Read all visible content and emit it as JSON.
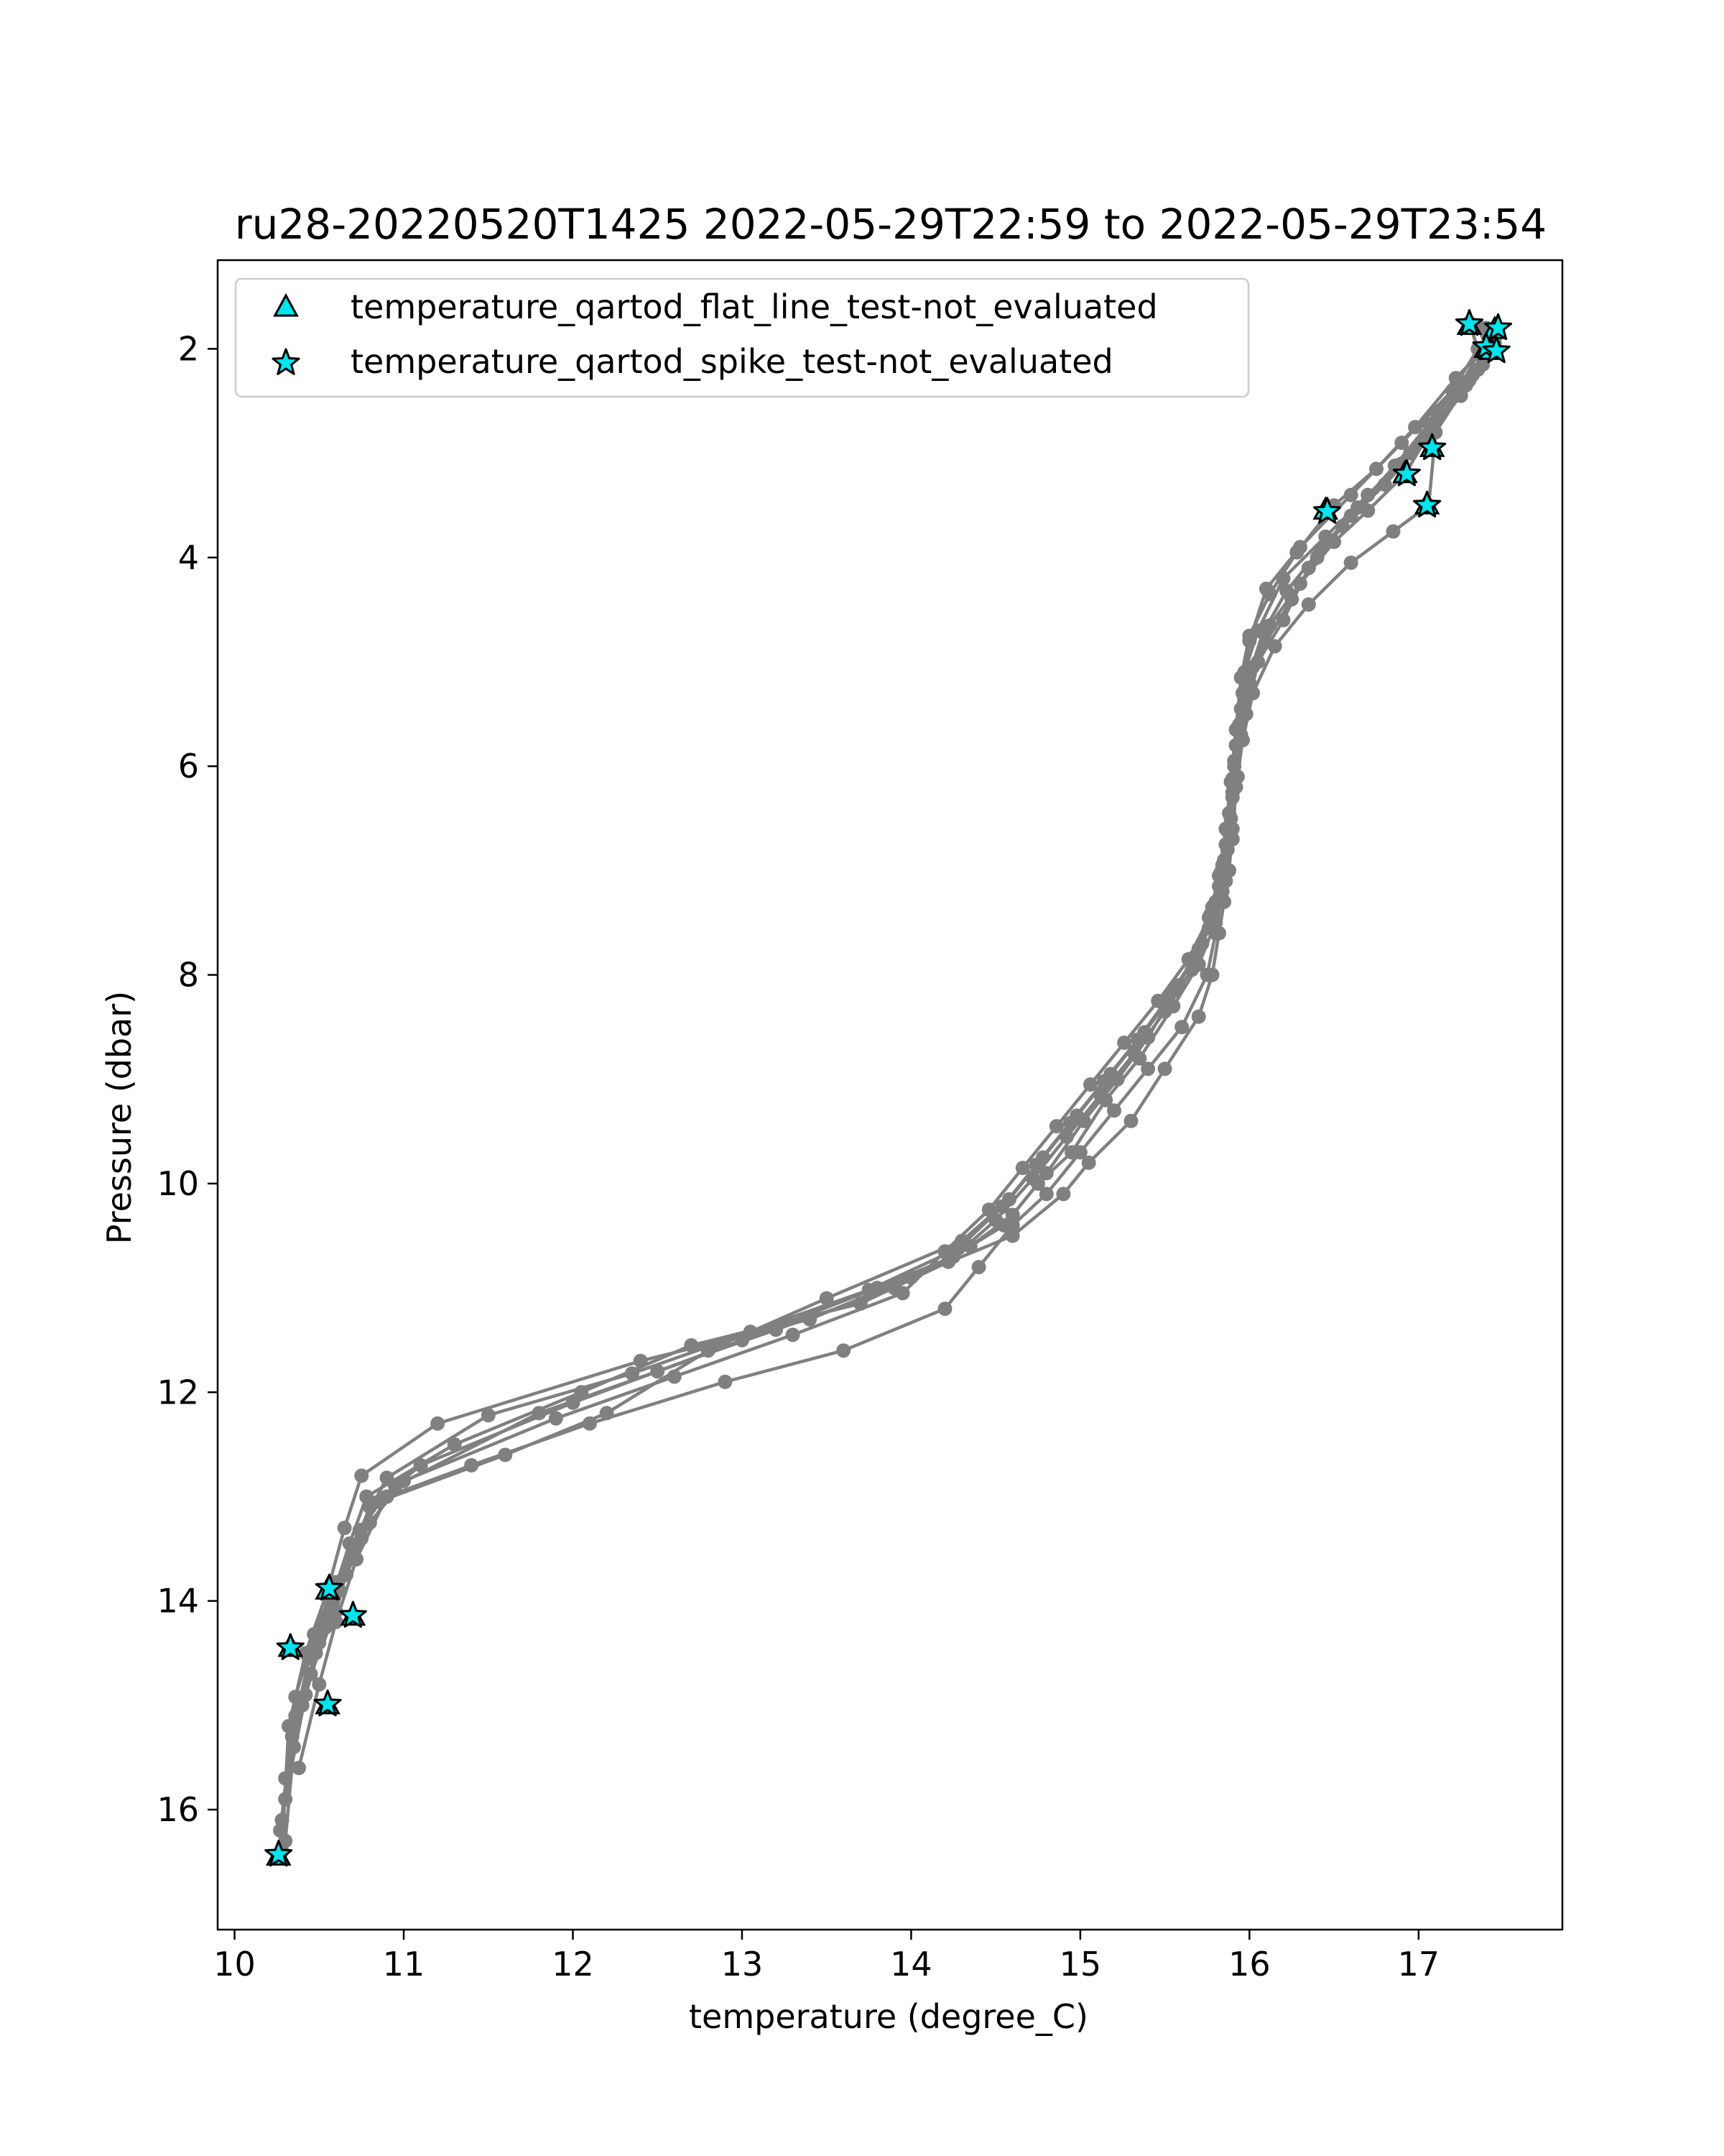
{
  "chart_data": {
    "type": "scatter",
    "title": "ru28-20220520T1425 2022-05-29T22:59 to 2022-05-29T23:54",
    "xlabel": "temperature (degree_C)",
    "ylabel": "Pressure (dbar)",
    "xlim": [
      9.9,
      17.85
    ],
    "ylim": [
      17.15,
      1.15
    ],
    "y_inverted": true,
    "xticks": [
      10,
      11,
      12,
      13,
      14,
      15,
      16,
      17
    ],
    "yticks": [
      2,
      4,
      6,
      8,
      10,
      12,
      14,
      16
    ],
    "grid": false,
    "legend": {
      "placement": "top-left",
      "entries": [
        {
          "label": "temperature_qartod_flat_line_test-not_evaluated",
          "marker": "triangle",
          "color": "#00e5ee"
        },
        {
          "label": "temperature_qartod_spike_test-not_evaluated",
          "marker": "star",
          "color": "#00e5ee"
        }
      ]
    },
    "profile_color": "#808080",
    "flag_color": "#00e5ee",
    "profiles": [
      {
        "x": [
          17.42,
          17.4,
          17.3,
          17.1,
          16.9,
          16.6,
          16.35,
          16.2,
          16.05,
          15.98,
          15.93,
          15.9,
          15.88,
          15.85,
          15.82,
          15.78,
          15.7,
          15.5,
          15.3,
          15.05,
          14.9,
          14.6,
          14.0,
          13.4,
          12.4,
          11.2,
          10.75,
          10.65,
          10.55,
          10.42,
          10.32,
          10.28
        ],
        "y": [
          1.85,
          2.05,
          2.3,
          2.7,
          3.1,
          3.6,
          4.1,
          4.6,
          5.0,
          5.5,
          6.1,
          6.6,
          7.0,
          7.3,
          7.6,
          8.0,
          8.4,
          8.9,
          9.4,
          9.8,
          10.1,
          10.5,
          10.9,
          11.3,
          11.7,
          12.3,
          12.8,
          13.3,
          13.9,
          14.5,
          15.2,
          16.4
        ]
      },
      {
        "x": [
          17.45,
          17.38,
          17.25,
          17.05,
          16.8,
          16.55,
          16.4,
          16.25,
          16.1,
          16.0,
          15.95,
          15.92,
          15.9,
          15.86,
          15.8,
          15.7,
          15.55,
          15.35,
          15.15,
          14.95,
          14.75,
          14.55,
          14.25,
          13.8,
          13.0,
          12.0,
          11.1,
          10.8,
          10.7,
          10.6,
          10.45,
          10.35,
          10.3
        ],
        "y": [
          1.95,
          2.15,
          2.45,
          2.85,
          3.3,
          3.7,
          4.0,
          4.4,
          4.8,
          5.2,
          5.7,
          6.2,
          6.7,
          7.1,
          7.5,
          7.9,
          8.3,
          8.8,
          9.2,
          9.7,
          10.0,
          10.4,
          10.7,
          11.0,
          11.5,
          12.1,
          12.7,
          13.1,
          13.5,
          14.1,
          14.7,
          15.4,
          16.3
        ]
      },
      {
        "x": [
          17.3,
          17.35,
          17.2,
          16.9,
          16.6,
          16.3,
          16.1,
          16.0,
          15.96,
          15.92,
          15.9,
          15.87,
          15.84,
          15.8,
          15.75,
          15.6,
          15.4,
          15.2,
          15.0,
          14.8,
          14.6,
          14.4,
          14.2,
          13.6,
          12.9,
          12.1,
          11.4,
          10.9,
          10.72,
          10.6,
          10.5,
          10.38
        ],
        "y": [
          1.75,
          2.0,
          2.4,
          2.9,
          3.4,
          3.9,
          4.3,
          4.8,
          5.3,
          5.8,
          6.3,
          6.8,
          7.2,
          7.6,
          8.0,
          8.5,
          8.9,
          9.3,
          9.7,
          10.1,
          10.4,
          10.8,
          11.2,
          11.6,
          11.9,
          12.3,
          12.7,
          13.0,
          13.6,
          14.2,
          14.8,
          15.6
        ]
      },
      {
        "x": [
          17.4,
          17.42,
          17.35,
          17.1,
          16.95,
          16.7,
          16.45,
          16.2,
          16.05,
          15.97,
          15.94,
          15.91,
          15.89,
          15.85,
          15.8,
          15.72,
          15.58,
          15.4,
          15.22,
          15.02,
          14.8,
          14.6,
          14.35,
          13.9,
          13.2,
          12.5,
          11.8,
          10.95,
          10.75,
          10.62,
          10.5,
          10.4,
          10.3
        ],
        "y": [
          1.8,
          2.0,
          2.2,
          2.6,
          3.0,
          3.4,
          3.8,
          4.2,
          4.7,
          5.1,
          5.6,
          6.0,
          6.5,
          6.9,
          7.3,
          7.7,
          8.1,
          8.6,
          9.0,
          9.4,
          9.9,
          10.3,
          10.6,
          11.0,
          11.4,
          11.8,
          12.2,
          12.9,
          13.4,
          13.9,
          14.4,
          15.0,
          15.7
        ]
      },
      {
        "x": [
          17.45,
          17.38,
          17.28,
          17.1,
          17.06,
          16.85,
          16.6,
          16.35,
          16.15,
          16.02,
          15.96,
          15.9,
          15.86,
          15.82,
          15.76,
          15.66,
          15.5,
          15.32,
          15.12,
          14.92,
          14.72,
          14.5,
          14.22,
          13.7,
          12.7,
          12.05,
          11.3,
          10.78,
          10.68,
          10.58,
          10.48,
          10.36,
          10.28
        ],
        "y": [
          1.9,
          2.1,
          2.35,
          2.8,
          3.5,
          3.75,
          4.05,
          4.45,
          4.85,
          5.3,
          5.75,
          6.25,
          6.75,
          7.15,
          7.55,
          7.95,
          8.35,
          8.75,
          9.15,
          9.55,
          9.95,
          10.35,
          10.75,
          11.15,
          11.55,
          12.0,
          12.5,
          13.0,
          13.45,
          13.95,
          14.5,
          15.1,
          16.1
        ]
      },
      {
        "x": [
          17.46,
          17.4,
          17.32,
          17.12,
          16.92,
          16.7,
          16.5,
          16.3,
          16.12,
          16.02,
          15.95,
          15.91,
          15.88,
          15.84,
          15.78,
          15.7,
          15.56,
          15.38,
          15.18,
          14.98,
          14.78,
          14.58,
          14.3,
          13.5,
          12.8,
          12.2,
          11.6,
          10.85,
          10.7,
          10.56,
          10.44,
          10.34,
          10.26
        ],
        "y": [
          1.85,
          2.05,
          2.25,
          2.65,
          3.2,
          3.55,
          3.85,
          4.25,
          4.65,
          5.05,
          5.45,
          5.95,
          6.45,
          6.95,
          7.35,
          7.75,
          8.15,
          8.55,
          8.95,
          9.35,
          9.75,
          10.15,
          10.55,
          11.1,
          11.6,
          12.2,
          12.6,
          13.05,
          13.5,
          14.0,
          14.55,
          15.3,
          16.45
        ]
      },
      {
        "x": [
          17.35,
          17.4,
          17.22,
          16.98,
          16.75,
          16.5,
          16.28,
          16.12,
          16.0,
          15.95,
          15.92,
          15.89,
          15.86,
          15.82,
          15.76,
          15.64,
          15.46,
          15.26,
          15.06,
          14.86,
          14.66,
          14.46,
          14.2,
          13.95,
          13.3,
          12.6,
          11.9,
          11.0,
          10.8,
          10.66,
          10.54,
          10.42,
          10.3
        ],
        "y": [
          1.78,
          1.98,
          2.28,
          2.75,
          3.15,
          3.5,
          3.95,
          4.35,
          4.75,
          5.15,
          5.65,
          6.15,
          6.6,
          7.05,
          7.45,
          7.85,
          8.25,
          8.65,
          9.05,
          9.45,
          9.85,
          10.25,
          10.65,
          11.05,
          11.45,
          11.85,
          12.25,
          12.85,
          13.25,
          13.75,
          14.25,
          14.9,
          15.9
        ]
      },
      {
        "x": [
          17.43,
          17.36,
          17.26,
          17.06,
          16.86,
          16.64,
          16.42,
          16.22,
          16.08,
          16.0,
          15.94,
          15.9,
          15.87,
          15.83,
          15.77,
          15.68,
          15.52,
          15.34,
          15.14,
          14.94,
          14.74,
          14.54,
          14.28,
          13.75,
          13.05,
          12.35,
          11.5,
          10.9,
          10.74,
          10.6,
          10.47,
          10.36,
          10.27
        ],
        "y": [
          1.82,
          2.02,
          2.32,
          2.72,
          3.12,
          3.52,
          3.92,
          4.32,
          4.72,
          5.12,
          5.62,
          6.12,
          6.62,
          7.02,
          7.42,
          7.82,
          8.22,
          8.62,
          9.02,
          9.42,
          9.82,
          10.22,
          10.62,
          11.02,
          11.42,
          11.82,
          12.22,
          12.82,
          13.32,
          13.82,
          14.32,
          14.92,
          16.2
        ]
      }
    ],
    "flat_line_flags": [
      {
        "x": 17.3,
        "y": 1.78
      },
      {
        "x": 17.45,
        "y": 1.82
      },
      {
        "x": 17.4,
        "y": 2.0
      },
      {
        "x": 17.43,
        "y": 2.02
      },
      {
        "x": 16.45,
        "y": 3.55
      },
      {
        "x": 16.92,
        "y": 3.2
      },
      {
        "x": 17.08,
        "y": 2.95
      },
      {
        "x": 17.05,
        "y": 3.5
      },
      {
        "x": 10.55,
        "y": 13.9
      },
      {
        "x": 10.7,
        "y": 14.15
      },
      {
        "x": 10.33,
        "y": 14.45
      },
      {
        "x": 10.55,
        "y": 15.0
      },
      {
        "x": 10.26,
        "y": 16.45
      }
    ],
    "spike_flags": [
      {
        "x": 17.3,
        "y": 1.76
      },
      {
        "x": 17.47,
        "y": 1.8
      },
      {
        "x": 17.4,
        "y": 1.98
      },
      {
        "x": 17.46,
        "y": 2.02
      },
      {
        "x": 16.46,
        "y": 3.56
      },
      {
        "x": 16.93,
        "y": 3.2
      },
      {
        "x": 17.08,
        "y": 2.95
      },
      {
        "x": 17.05,
        "y": 3.5
      },
      {
        "x": 10.56,
        "y": 13.88
      },
      {
        "x": 10.7,
        "y": 14.14
      },
      {
        "x": 10.33,
        "y": 14.45
      },
      {
        "x": 10.55,
        "y": 14.99
      },
      {
        "x": 10.26,
        "y": 16.43
      }
    ]
  }
}
